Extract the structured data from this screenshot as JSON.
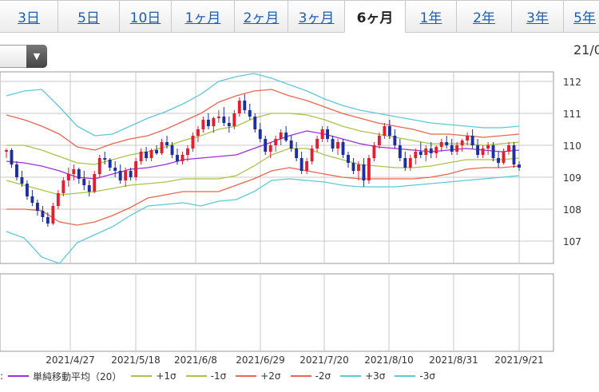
{
  "tabs": [
    {
      "label": "3日",
      "active": false
    },
    {
      "label": "5日",
      "active": false
    },
    {
      "label": "10日",
      "active": false
    },
    {
      "label": "1ヶ月",
      "active": false
    },
    {
      "label": "2ヶ月",
      "active": false
    },
    {
      "label": "3ヶ月",
      "active": false
    },
    {
      "label": "6ヶ月",
      "active": true
    },
    {
      "label": "1年",
      "active": false
    },
    {
      "label": "2年",
      "active": false
    },
    {
      "label": "3年",
      "active": false
    },
    {
      "label": "5年",
      "active": false
    }
  ],
  "top_date": "21/0",
  "select_arrow": "▼",
  "legend": {
    "prefix": ":",
    "items": [
      {
        "label": "単純移動平均（20）",
        "color": "#9b30d9"
      },
      {
        "label": "+1σ",
        "color": "#a8c44a"
      },
      {
        "label": "-1σ",
        "color": "#a8c44a"
      },
      {
        "label": "+2σ",
        "color": "#e8664f"
      },
      {
        "label": "-2σ",
        "color": "#e8664f"
      },
      {
        "label": "+3σ",
        "color": "#5ec8d8"
      },
      {
        "label": "-3σ",
        "color": "#5ec8d8"
      }
    ]
  },
  "colors": {
    "up": "#e02030",
    "down": "#1c2f9c",
    "grid": "#c8c8c8"
  },
  "chart_data": {
    "type": "candlestick",
    "y_ticks": [
      112,
      111,
      110,
      109,
      108,
      107
    ],
    "ylim": [
      106.3,
      112.3
    ],
    "x_tick_labels": [
      "2021/4/27",
      "2021/5/18",
      "2021/6/8",
      "2021/6/29",
      "2021/7/20",
      "2021/8/10",
      "2021/8/31",
      "2021/9/21"
    ],
    "series": [
      {
        "name": "単純移動平均（20）",
        "color": "#9b30d9",
        "values": [
          109.5,
          109.45,
          109.35,
          109.2,
          109.0,
          108.95,
          109.1,
          109.25,
          109.3,
          109.4,
          109.55,
          109.6,
          109.65,
          109.7,
          109.9,
          110.1,
          110.3,
          110.45,
          110.35,
          110.2,
          110.05,
          109.95,
          109.9,
          109.85,
          109.8,
          109.85,
          109.9,
          109.85,
          109.8,
          109.85
        ]
      },
      {
        "name": "+1σ",
        "color": "#a8c44a",
        "values": [
          110.0,
          110.0,
          109.85,
          109.65,
          109.45,
          109.4,
          109.55,
          109.7,
          109.8,
          109.95,
          110.15,
          110.3,
          110.5,
          110.6,
          110.85,
          111.0,
          111.0,
          110.95,
          110.8,
          110.6,
          110.45,
          110.35,
          110.25,
          110.15,
          110.05,
          110.05,
          110.05,
          110.0,
          110.05,
          110.1
        ]
      },
      {
        "name": "-1σ",
        "color": "#a8c44a",
        "values": [
          108.9,
          108.75,
          108.6,
          108.45,
          108.5,
          108.55,
          108.65,
          108.75,
          108.8,
          108.85,
          108.95,
          108.95,
          108.95,
          109.05,
          109.35,
          109.7,
          109.9,
          109.9,
          109.7,
          109.55,
          109.4,
          109.35,
          109.3,
          109.3,
          109.35,
          109.45,
          109.55,
          109.55,
          109.55,
          109.6
        ]
      },
      {
        "name": "+2σ",
        "color": "#e8664f",
        "values": [
          110.95,
          110.8,
          110.6,
          110.35,
          109.95,
          109.85,
          110.05,
          110.2,
          110.3,
          110.5,
          110.75,
          111.0,
          111.35,
          111.55,
          111.7,
          111.75,
          111.55,
          111.4,
          111.2,
          111.0,
          110.85,
          110.7,
          110.6,
          110.5,
          110.35,
          110.35,
          110.3,
          110.25,
          110.3,
          110.35
        ]
      },
      {
        "name": "-2σ",
        "color": "#e8664f",
        "values": [
          108.0,
          108.0,
          107.95,
          107.6,
          107.5,
          107.6,
          107.8,
          108.05,
          108.35,
          108.45,
          108.55,
          108.55,
          108.55,
          108.75,
          108.95,
          109.2,
          109.3,
          109.2,
          109.1,
          109.0,
          108.95,
          108.95,
          108.95,
          108.95,
          109.0,
          109.1,
          109.25,
          109.3,
          109.3,
          109.35
        ]
      },
      {
        "name": "+3σ",
        "color": "#5ec8d8",
        "values": [
          111.55,
          111.7,
          111.75,
          111.2,
          110.6,
          110.3,
          110.35,
          110.6,
          110.85,
          111.05,
          111.3,
          111.6,
          112.0,
          112.15,
          112.25,
          112.1,
          111.9,
          111.7,
          111.45,
          111.25,
          111.1,
          111.0,
          110.9,
          110.8,
          110.7,
          110.65,
          110.6,
          110.55,
          110.55,
          110.6
        ]
      },
      {
        "name": "-3σ",
        "color": "#5ec8d8",
        "values": [
          107.3,
          107.1,
          106.5,
          106.3,
          106.95,
          107.2,
          107.45,
          107.8,
          108.1,
          108.15,
          108.2,
          108.1,
          108.25,
          108.3,
          108.55,
          108.9,
          108.95,
          108.9,
          108.85,
          108.75,
          108.7,
          108.7,
          108.7,
          108.75,
          108.8,
          108.85,
          108.9,
          108.95,
          109.0,
          109.05
        ]
      }
    ],
    "candles": [
      [
        109.8,
        109.9,
        109.6,
        109.85
      ],
      [
        109.85,
        109.9,
        109.3,
        109.4
      ],
      [
        109.4,
        109.5,
        108.9,
        109.0
      ],
      [
        109.0,
        109.2,
        108.7,
        108.8
      ],
      [
        108.8,
        108.9,
        108.3,
        108.4
      ],
      [
        108.4,
        108.6,
        108.1,
        108.2
      ],
      [
        108.2,
        108.3,
        107.8,
        107.95
      ],
      [
        107.95,
        108.1,
        107.6,
        107.75
      ],
      [
        107.75,
        107.9,
        107.45,
        107.55
      ],
      [
        107.55,
        108.2,
        107.5,
        108.1
      ],
      [
        108.1,
        108.6,
        108.0,
        108.5
      ],
      [
        108.5,
        109.0,
        108.4,
        108.9
      ],
      [
        108.9,
        109.3,
        108.7,
        109.1
      ],
      [
        109.1,
        109.4,
        108.9,
        109.25
      ],
      [
        109.25,
        109.3,
        108.8,
        108.95
      ],
      [
        108.95,
        109.2,
        108.6,
        108.75
      ],
      [
        108.75,
        108.9,
        108.4,
        108.55
      ],
      [
        108.55,
        109.2,
        108.5,
        109.1
      ],
      [
        109.1,
        109.7,
        109.0,
        109.6
      ],
      [
        109.6,
        109.8,
        109.4,
        109.55
      ],
      [
        109.55,
        109.6,
        109.2,
        109.3
      ],
      [
        109.3,
        109.5,
        109.0,
        109.2
      ],
      [
        109.2,
        109.4,
        108.8,
        108.9
      ],
      [
        108.9,
        109.3,
        108.7,
        109.2
      ],
      [
        109.2,
        109.3,
        108.9,
        109.0
      ],
      [
        109.0,
        109.6,
        108.9,
        109.5
      ],
      [
        109.5,
        109.9,
        109.4,
        109.8
      ],
      [
        109.8,
        109.95,
        109.5,
        109.6
      ],
      [
        109.6,
        109.9,
        109.5,
        109.85
      ],
      [
        109.85,
        110.0,
        109.7,
        109.75
      ],
      [
        109.75,
        110.2,
        109.7,
        110.1
      ],
      [
        110.1,
        110.3,
        109.9,
        110.0
      ],
      [
        110.0,
        110.1,
        109.6,
        109.7
      ],
      [
        109.7,
        109.9,
        109.4,
        109.5
      ],
      [
        109.5,
        109.8,
        109.4,
        109.7
      ],
      [
        109.7,
        110.0,
        109.5,
        109.9
      ],
      [
        109.9,
        110.4,
        109.8,
        110.3
      ],
      [
        110.3,
        110.6,
        110.1,
        110.5
      ],
      [
        110.5,
        110.9,
        110.4,
        110.8
      ],
      [
        110.8,
        111.0,
        110.5,
        110.6
      ],
      [
        110.6,
        110.9,
        110.4,
        110.85
      ],
      [
        110.85,
        111.1,
        110.7,
        110.9
      ],
      [
        110.9,
        111.2,
        110.6,
        110.7
      ],
      [
        110.7,
        110.9,
        110.4,
        110.6
      ],
      [
        110.6,
        111.1,
        110.5,
        111.0
      ],
      [
        111.0,
        111.5,
        110.9,
        111.4
      ],
      [
        111.4,
        111.6,
        111.0,
        111.1
      ],
      [
        111.1,
        111.3,
        110.8,
        110.9
      ],
      [
        110.9,
        111.0,
        110.4,
        110.5
      ],
      [
        110.5,
        110.7,
        110.1,
        110.2
      ],
      [
        110.2,
        110.3,
        109.7,
        109.8
      ],
      [
        109.8,
        110.1,
        109.6,
        110.0
      ],
      [
        110.0,
        110.3,
        109.8,
        110.2
      ],
      [
        110.2,
        110.5,
        110.0,
        110.4
      ],
      [
        110.4,
        110.6,
        110.1,
        110.15
      ],
      [
        110.15,
        110.3,
        109.8,
        109.9
      ],
      [
        109.9,
        110.1,
        109.5,
        109.6
      ],
      [
        109.6,
        109.8,
        109.1,
        109.2
      ],
      [
        109.2,
        109.6,
        109.1,
        109.5
      ],
      [
        109.5,
        110.0,
        109.4,
        109.9
      ],
      [
        109.9,
        110.3,
        109.8,
        110.2
      ],
      [
        110.2,
        110.6,
        110.1,
        110.5
      ],
      [
        110.5,
        110.6,
        110.1,
        110.2
      ],
      [
        110.2,
        110.3,
        109.8,
        109.9
      ],
      [
        109.9,
        110.2,
        109.7,
        110.1
      ],
      [
        110.1,
        110.2,
        109.6,
        109.7
      ],
      [
        109.7,
        109.8,
        109.3,
        109.45
      ],
      [
        109.45,
        109.6,
        109.1,
        109.2
      ],
      [
        109.2,
        109.5,
        108.9,
        109.4
      ],
      [
        109.4,
        109.6,
        108.7,
        108.9
      ],
      [
        108.9,
        109.7,
        108.8,
        109.6
      ],
      [
        109.6,
        110.1,
        109.5,
        110.0
      ],
      [
        110.0,
        110.4,
        109.9,
        110.3
      ],
      [
        110.3,
        110.7,
        110.2,
        110.6
      ],
      [
        110.6,
        110.8,
        110.2,
        110.3
      ],
      [
        110.3,
        110.5,
        109.9,
        110.0
      ],
      [
        110.0,
        110.2,
        109.5,
        109.6
      ],
      [
        109.6,
        109.8,
        109.2,
        109.3
      ],
      [
        109.3,
        109.7,
        109.2,
        109.6
      ],
      [
        109.6,
        109.9,
        109.4,
        109.8
      ],
      [
        109.8,
        110.1,
        109.6,
        109.7
      ],
      [
        109.7,
        110.0,
        109.5,
        109.9
      ],
      [
        109.9,
        110.1,
        109.6,
        109.75
      ],
      [
        109.75,
        110.0,
        109.6,
        109.95
      ],
      [
        109.95,
        110.2,
        109.8,
        110.1
      ],
      [
        110.1,
        110.3,
        109.9,
        110.0
      ],
      [
        110.0,
        110.2,
        109.7,
        109.8
      ],
      [
        109.8,
        110.1,
        109.7,
        110.0
      ],
      [
        110.0,
        110.2,
        109.8,
        110.15
      ],
      [
        110.15,
        110.4,
        110.0,
        110.3
      ],
      [
        110.3,
        110.5,
        109.9,
        110.0
      ],
      [
        110.0,
        110.2,
        109.6,
        109.7
      ],
      [
        109.7,
        110.0,
        109.6,
        109.9
      ],
      [
        109.9,
        110.1,
        109.7,
        110.0
      ],
      [
        110.0,
        110.1,
        109.5,
        109.6
      ],
      [
        109.6,
        109.8,
        109.3,
        109.45
      ],
      [
        109.45,
        109.9,
        109.4,
        109.8
      ],
      [
        109.8,
        110.1,
        109.7,
        110.0
      ],
      [
        110.0,
        110.1,
        109.3,
        109.4
      ],
      [
        109.4,
        109.5,
        109.2,
        109.3
      ]
    ]
  }
}
